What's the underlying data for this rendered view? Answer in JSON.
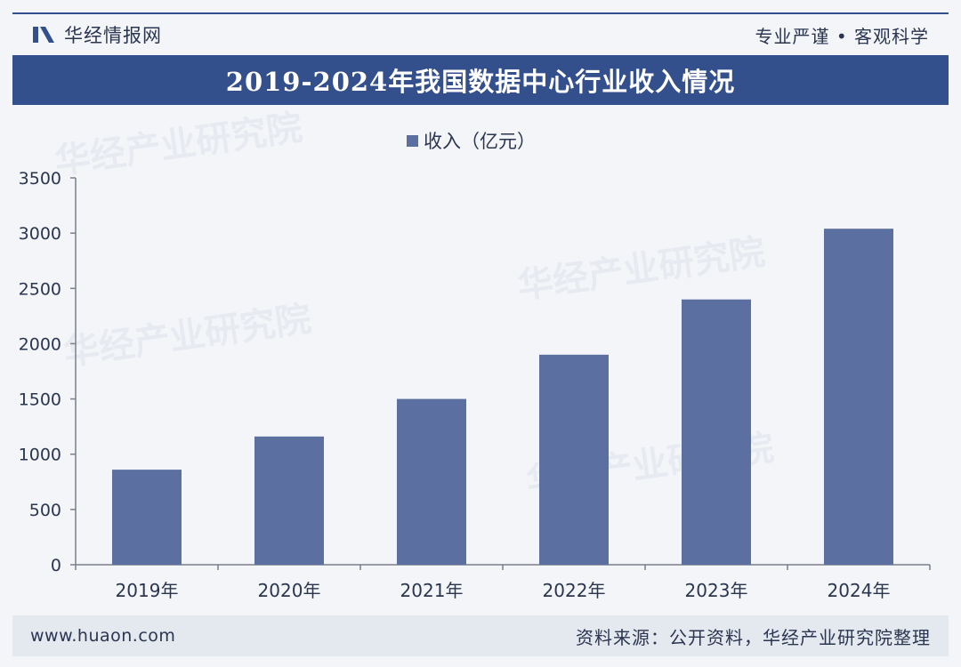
{
  "header": {
    "brand_name": "华经情报网",
    "slogan": "专业严谨 • 客观科学"
  },
  "colors": {
    "accent": "#34508c",
    "bar": "#5b6fa0",
    "axis": "#7a7f8a",
    "text": "#2a3550"
  },
  "chart_data": {
    "type": "bar",
    "title": "2019-2024年我国数据中心行业收入情况",
    "categories": [
      "2019年",
      "2020年",
      "2021年",
      "2022年",
      "2023年",
      "2024年"
    ],
    "series": [
      {
        "name": "收入（亿元）",
        "values": [
          860,
          1160,
          1500,
          1900,
          2400,
          3040
        ]
      }
    ],
    "ylim": [
      0,
      3500
    ],
    "yticks": [
      0,
      500,
      1000,
      1500,
      2000,
      2500,
      3000,
      3500
    ],
    "ytick_labels": [
      "0",
      "500",
      "1000",
      "1500",
      "2000",
      "2500",
      "3000",
      "3500"
    ],
    "legend_position": "top-center",
    "grid": false
  },
  "watermark": {
    "text": "华经产业研究院",
    "url": "www.huaon.com"
  },
  "footer": {
    "website": "www.huaon.com",
    "source": "资料来源：公开资料，华经产业研究院整理"
  }
}
